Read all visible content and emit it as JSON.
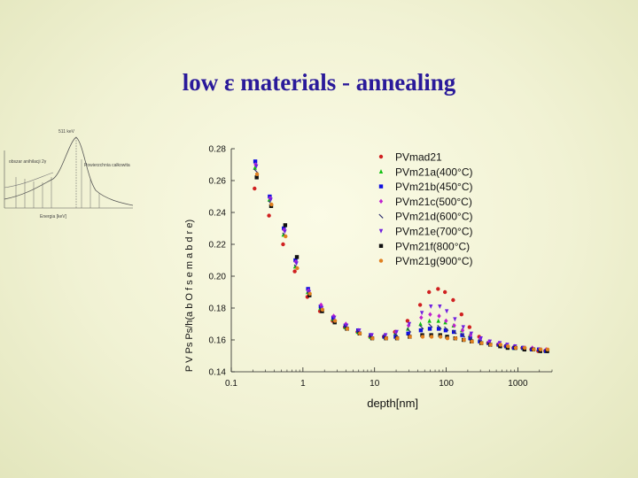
{
  "slide": {
    "title": "low ε materials - annealing"
  },
  "inset": {
    "peak_label": "511 keV",
    "left_label": "obszar anihilacji 2γ",
    "right_label": "Powierzchnia całkowita",
    "bottom_label": "Energia [keV]"
  },
  "chart_data": {
    "type": "scatter",
    "title": "",
    "xlabel": "depth[nm]",
    "ylabel": "P V Ps Ps/h(a b O f s e m a b d r e)",
    "xscale": "log",
    "xlim": [
      0.1,
      3000
    ],
    "ylim": [
      0.14,
      0.28
    ],
    "x_ticks": [
      {
        "value": 0.1,
        "label": "0.1"
      },
      {
        "value": 1,
        "label": "1"
      },
      {
        "value": 10,
        "label": "10"
      },
      {
        "value": 100,
        "label": "100"
      },
      {
        "value": 1000,
        "label": "1000"
      }
    ],
    "y_ticks": [
      {
        "value": 0.28,
        "label": "0.28"
      },
      {
        "value": 0.26,
        "label": "0.26"
      },
      {
        "value": 0.24,
        "label": "0.24"
      },
      {
        "value": 0.22,
        "label": "0.22"
      },
      {
        "value": 0.2,
        "label": "0.20"
      },
      {
        "value": 0.18,
        "label": "0.18"
      },
      {
        "value": 0.16,
        "label": "0.16"
      },
      {
        "value": 0.14,
        "label": "0.14"
      }
    ],
    "x": [
      0.22,
      0.35,
      0.55,
      0.8,
      1.2,
      1.8,
      2.7,
      4,
      6,
      9,
      14,
      20,
      30,
      45,
      60,
      80,
      100,
      130,
      170,
      220,
      300,
      400,
      550,
      700,
      900,
      1200,
      1600,
      2000,
      2500
    ],
    "series": [
      {
        "name": "PVmad21",
        "color": "#d02020",
        "marker": "circle",
        "values": [
          0.255,
          0.238,
          0.22,
          0.203,
          0.187,
          0.178,
          0.172,
          0.168,
          0.165,
          0.162,
          0.162,
          0.165,
          0.172,
          0.182,
          0.19,
          0.192,
          0.19,
          0.185,
          0.176,
          0.168,
          0.162,
          0.158,
          0.157,
          0.156,
          0.155,
          0.155,
          0.154,
          0.153,
          0.153
        ]
      },
      {
        "name": "PVm21a(400°C)",
        "color": "#10c010",
        "marker": "triangle-up",
        "values": [
          0.268,
          0.248,
          0.226,
          0.206,
          0.19,
          0.18,
          0.173,
          0.168,
          0.165,
          0.162,
          0.162,
          0.164,
          0.167,
          0.17,
          0.172,
          0.172,
          0.171,
          0.169,
          0.166,
          0.163,
          0.16,
          0.158,
          0.157,
          0.156,
          0.155,
          0.155,
          0.154,
          0.154,
          0.153
        ]
      },
      {
        "name": "PVm21b(450°C)",
        "color": "#1010e0",
        "marker": "square",
        "values": [
          0.272,
          0.25,
          0.23,
          0.21,
          0.192,
          0.181,
          0.174,
          0.169,
          0.166,
          0.163,
          0.162,
          0.162,
          0.164,
          0.166,
          0.167,
          0.167,
          0.166,
          0.165,
          0.163,
          0.161,
          0.159,
          0.158,
          0.157,
          0.156,
          0.155,
          0.155,
          0.154,
          0.154,
          0.153
        ]
      },
      {
        "name": "PVm21c(500°C)",
        "color": "#c020d0",
        "marker": "diamond",
        "values": [
          0.27,
          0.249,
          0.229,
          0.209,
          0.191,
          0.182,
          0.175,
          0.17,
          0.166,
          0.163,
          0.163,
          0.165,
          0.169,
          0.174,
          0.176,
          0.175,
          0.172,
          0.169,
          0.166,
          0.163,
          0.161,
          0.159,
          0.158,
          0.157,
          0.156,
          0.155,
          0.155,
          0.154,
          0.154
        ]
      },
      {
        "name": "PVm21d(600°C)",
        "color": "#303070",
        "marker": "slash",
        "values": [
          0.266,
          0.246,
          0.226,
          0.206,
          0.189,
          0.179,
          0.172,
          0.168,
          0.165,
          0.162,
          0.162,
          0.163,
          0.166,
          0.168,
          0.169,
          0.168,
          0.167,
          0.165,
          0.163,
          0.161,
          0.159,
          0.157,
          0.156,
          0.156,
          0.155,
          0.154,
          0.154,
          0.153,
          0.153
        ]
      },
      {
        "name": "PVm21e(700°C)",
        "color": "#7020e0",
        "marker": "triangle-down",
        "values": [
          0.269,
          0.248,
          0.228,
          0.208,
          0.19,
          0.18,
          0.174,
          0.169,
          0.166,
          0.163,
          0.163,
          0.165,
          0.17,
          0.177,
          0.181,
          0.181,
          0.178,
          0.173,
          0.168,
          0.164,
          0.161,
          0.159,
          0.158,
          0.157,
          0.156,
          0.155,
          0.154,
          0.154,
          0.153
        ]
      },
      {
        "name": "PVm21f(800°C)",
        "color": "#101010",
        "marker": "square",
        "values": [
          0.262,
          0.244,
          0.232,
          0.212,
          0.188,
          0.178,
          0.171,
          0.167,
          0.164,
          0.161,
          0.161,
          0.161,
          0.162,
          0.163,
          0.163,
          0.163,
          0.162,
          0.161,
          0.16,
          0.159,
          0.158,
          0.157,
          0.156,
          0.155,
          0.155,
          0.154,
          0.154,
          0.153,
          0.153
        ]
      },
      {
        "name": "PVm21g(900°C)",
        "color": "#e08020",
        "marker": "circle",
        "values": [
          0.264,
          0.245,
          0.225,
          0.205,
          0.189,
          0.179,
          0.172,
          0.167,
          0.164,
          0.161,
          0.161,
          0.161,
          0.162,
          0.162,
          0.162,
          0.162,
          0.161,
          0.161,
          0.16,
          0.159,
          0.158,
          0.157,
          0.157,
          0.156,
          0.155,
          0.155,
          0.154,
          0.154,
          0.154
        ]
      }
    ],
    "legend_position": "top-right"
  }
}
